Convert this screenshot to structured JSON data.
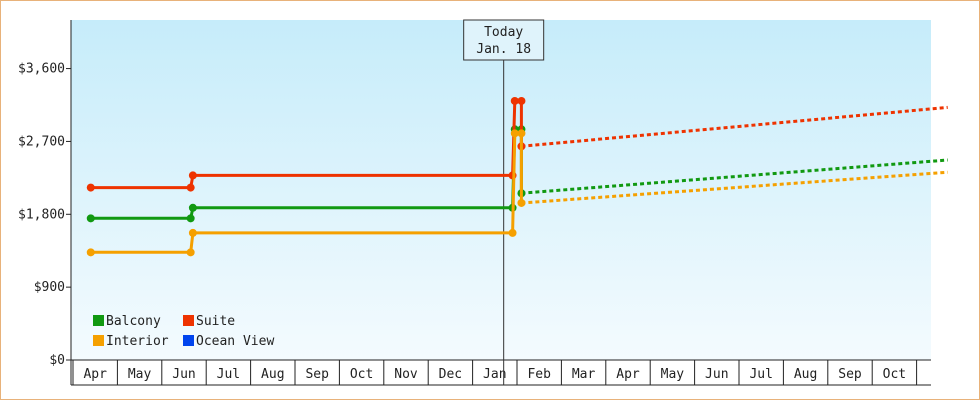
{
  "chart_data": {
    "type": "line",
    "title": "",
    "xlabel": "",
    "ylabel": "",
    "ylim": [
      0,
      4200
    ],
    "y_ticks": [
      0,
      900,
      1800,
      2700,
      3600
    ],
    "y_tick_labels": [
      "$0",
      "$900",
      "$1,800",
      "$2,700",
      "$3,600"
    ],
    "x_tick_labels": [
      "Apr",
      "May",
      "Jun",
      "Jul",
      "Aug",
      "Sep",
      "Oct",
      "Nov",
      "Dec",
      "Jan",
      "Feb",
      "Mar",
      "Apr",
      "May",
      "Jun",
      "Jul",
      "Aug",
      "Sep",
      "Oct"
    ],
    "today_marker": {
      "line1": "Today",
      "line2": "Jan. 18",
      "x": 9.2
    },
    "grid": false,
    "legend_position": "bottom-left",
    "series": [
      {
        "name": "Balcony",
        "color": "#119911",
        "actual": [
          [
            -0.1,
            1750
          ],
          [
            2.15,
            1750
          ],
          [
            2.2,
            1880
          ],
          [
            9.4,
            1880
          ],
          [
            9.45,
            2850
          ],
          [
            9.6,
            2850
          ],
          [
            9.6,
            2060
          ]
        ],
        "forecast": [
          [
            9.6,
            2060
          ],
          [
            19.2,
            2470
          ]
        ]
      },
      {
        "name": "Suite",
        "color": "#ee3300",
        "actual": [
          [
            -0.1,
            2130
          ],
          [
            2.15,
            2130
          ],
          [
            2.2,
            2280
          ],
          [
            9.4,
            2280
          ],
          [
            9.45,
            3200
          ],
          [
            9.6,
            3200
          ],
          [
            9.6,
            2640
          ]
        ],
        "forecast": [
          [
            9.6,
            2640
          ],
          [
            19.2,
            3120
          ]
        ]
      },
      {
        "name": "Interior",
        "color": "#f5a000",
        "actual": [
          [
            -0.1,
            1330
          ],
          [
            2.15,
            1330
          ],
          [
            2.2,
            1570
          ],
          [
            9.4,
            1570
          ],
          [
            9.45,
            2800
          ],
          [
            9.6,
            2800
          ],
          [
            9.6,
            1940
          ]
        ],
        "forecast": [
          [
            9.6,
            1940
          ],
          [
            19.2,
            2320
          ]
        ]
      },
      {
        "name": "Ocean View",
        "color": "#0044ee",
        "actual": [],
        "forecast": []
      }
    ],
    "legend": [
      {
        "name": "Balcony",
        "color": "#119911"
      },
      {
        "name": "Suite",
        "color": "#ee3300"
      },
      {
        "name": "Interior",
        "color": "#f5a000"
      },
      {
        "name": "Ocean View",
        "color": "#0044ee"
      }
    ]
  }
}
